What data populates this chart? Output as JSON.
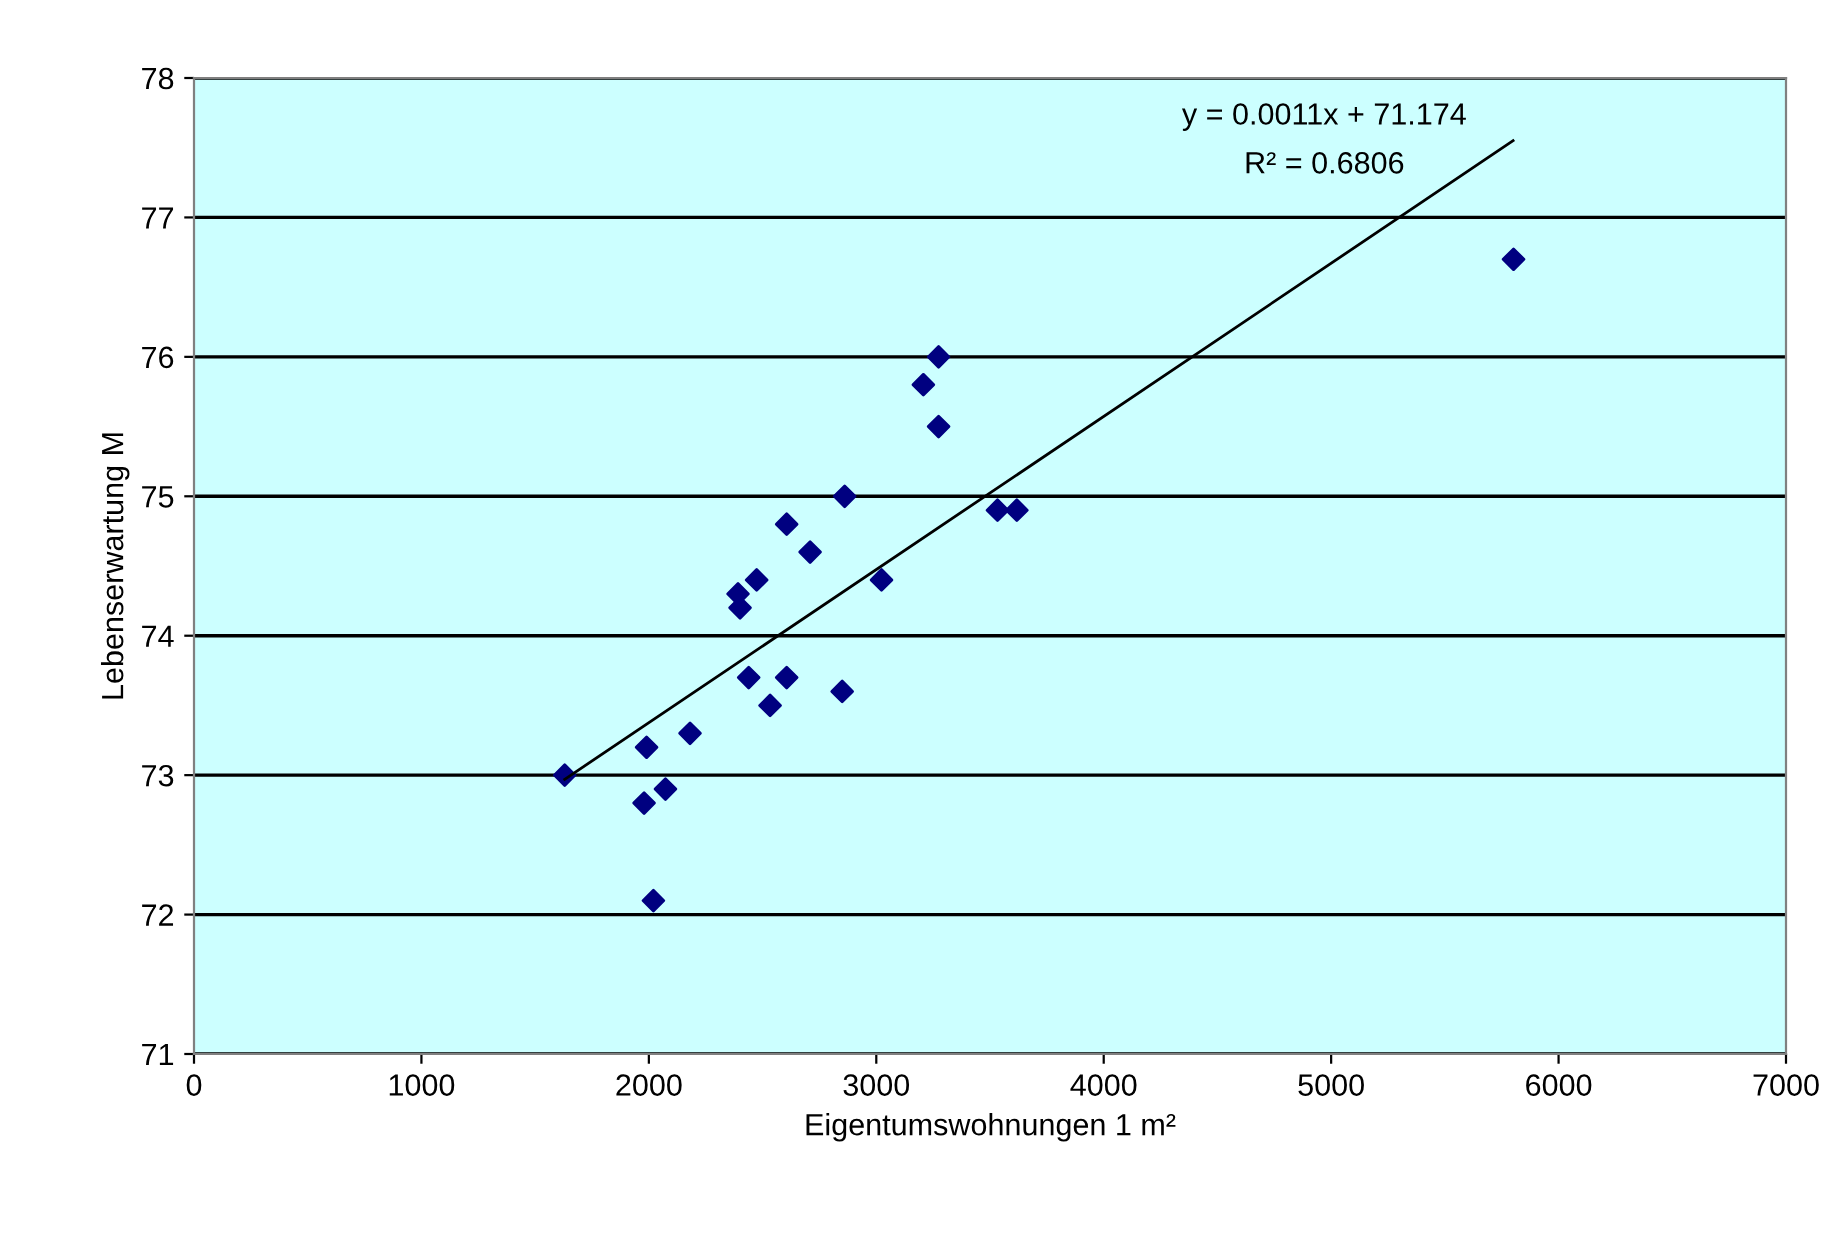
{
  "chart_data": {
    "type": "scatter",
    "xlabel": "Eigentumswohnungen 1 m²",
    "ylabel": "Lebenserwartung M",
    "xlim": [
      0,
      7000
    ],
    "xticks": [
      0,
      1000,
      2000,
      3000,
      4000,
      5000,
      6000,
      7000
    ],
    "ylim": [
      71,
      78
    ],
    "yticks": [
      71,
      72,
      73,
      74,
      75,
      76,
      77,
      78
    ],
    "grid": "y",
    "legend": false,
    "series": [
      {
        "marker": "diamond",
        "color": "#000080",
        "x": [
          3274,
          3207,
          3274,
          2861,
          3533,
          3618,
          2606,
          2709,
          2474,
          2392,
          2401,
          3023,
          2439,
          2606,
          2850,
          2533,
          2181,
          1990,
          1630,
          2073,
          1979,
          2020,
          5802
        ],
        "values": [
          76.0,
          75.8,
          75.5,
          75.0,
          74.9,
          74.9,
          74.8,
          74.6,
          74.4,
          74.3,
          74.2,
          74.4,
          73.7,
          73.7,
          73.6,
          73.5,
          73.3,
          73.2,
          73.0,
          72.9,
          72.8,
          72.1,
          76.7
        ]
      },
      {
        "type": "line",
        "color": "#000000",
        "x": [
          1630,
          5800
        ],
        "values": [
          72.97,
          77.55
        ]
      }
    ],
    "annotations": [
      "y = 0.0011x + 71.174",
      "R² = 0.6806"
    ]
  }
}
